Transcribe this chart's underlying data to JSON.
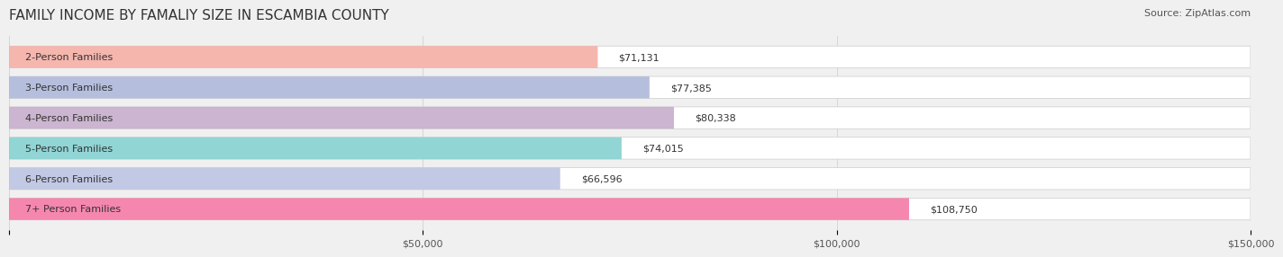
{
  "title": "FAMILY INCOME BY FAMALIY SIZE IN ESCAMBIA COUNTY",
  "source": "Source: ZipAtlas.com",
  "categories": [
    "2-Person Families",
    "3-Person Families",
    "4-Person Families",
    "5-Person Families",
    "6-Person Families",
    "7+ Person Families"
  ],
  "values": [
    71131,
    77385,
    80338,
    74015,
    66596,
    108750
  ],
  "bar_colors": [
    "#f4a9a0",
    "#a8b4d8",
    "#c4a8c8",
    "#7ecece",
    "#b8c0e0",
    "#f472a0"
  ],
  "value_labels": [
    "$71,131",
    "$77,385",
    "$80,338",
    "$74,015",
    "$66,596",
    "$108,750"
  ],
  "xlim": [
    0,
    150000
  ],
  "xticks": [
    0,
    50000,
    100000,
    150000
  ],
  "xticklabels": [
    "",
    "$50,000",
    "$100,000",
    "$150,000"
  ],
  "bg_color": "#f0f0f0",
  "bar_bg_color": "#e8e8e8",
  "title_fontsize": 11,
  "source_fontsize": 8,
  "label_fontsize": 8,
  "value_fontsize": 8,
  "tick_fontsize": 8
}
